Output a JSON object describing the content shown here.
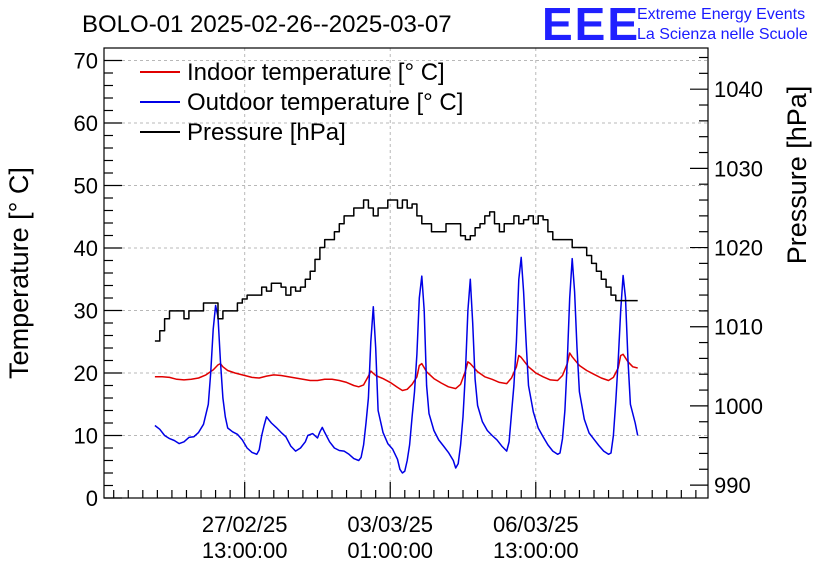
{
  "chart_data": {
    "type": "line",
    "title": "BOLO-01 2025-02-26--2025-03-07",
    "logo": {
      "mark": "EEE",
      "line1": "Extreme Energy Events",
      "line2": "La Scienza nelle Scuole",
      "color": "#2020ff"
    },
    "x_axis": {
      "type": "time",
      "range_hours": [
        -21,
        228
      ],
      "ticks": [
        {
          "hours": 37,
          "date": "27/02/25",
          "time": "13:00:00"
        },
        {
          "hours": 97,
          "date": "03/03/25",
          "time": "01:00:00"
        },
        {
          "hours": 157,
          "date": "06/03/25",
          "time": "13:00:00"
        }
      ]
    },
    "y_left": {
      "label": "Temperature [° C]",
      "ylim": [
        0,
        72
      ],
      "ticks": [
        0,
        10,
        20,
        30,
        40,
        50,
        60,
        70
      ]
    },
    "y_right": {
      "label": "Pressure [hPa]",
      "ylim": [
        988.37,
        1045.2
      ],
      "ticks": [
        990,
        1000,
        1010,
        1020,
        1030,
        1040
      ]
    },
    "grid": true,
    "legend_position": "top-left",
    "series": [
      {
        "name": "Indoor temperature [° C]",
        "color": "#e00000",
        "axis": "left",
        "points": [
          [
            0,
            19.4
          ],
          [
            3,
            19.4
          ],
          [
            6,
            19.3
          ],
          [
            9,
            19.0
          ],
          [
            12,
            18.9
          ],
          [
            15,
            19.0
          ],
          [
            18,
            19.2
          ],
          [
            21,
            19.7
          ],
          [
            24,
            20.5
          ],
          [
            26,
            21.3
          ],
          [
            27,
            21.5
          ],
          [
            28,
            21.0
          ],
          [
            30,
            20.4
          ],
          [
            33,
            20.0
          ],
          [
            36,
            19.7
          ],
          [
            40,
            19.3
          ],
          [
            43,
            19.2
          ],
          [
            46,
            19.5
          ],
          [
            49,
            19.7
          ],
          [
            52,
            19.6
          ],
          [
            55,
            19.4
          ],
          [
            58,
            19.2
          ],
          [
            61,
            19.0
          ],
          [
            64,
            18.8
          ],
          [
            67,
            18.8
          ],
          [
            70,
            19.0
          ],
          [
            73,
            19.0
          ],
          [
            76,
            18.8
          ],
          [
            79,
            18.5
          ],
          [
            82,
            18.0
          ],
          [
            84,
            17.8
          ],
          [
            86,
            18.1
          ],
          [
            88,
            19.5
          ],
          [
            89,
            20.3
          ],
          [
            91,
            19.6
          ],
          [
            94,
            19.1
          ],
          [
            97,
            18.5
          ],
          [
            100,
            17.7
          ],
          [
            102,
            17.2
          ],
          [
            104,
            17.4
          ],
          [
            106,
            18.2
          ],
          [
            108,
            19.4
          ],
          [
            109,
            21.2
          ],
          [
            110,
            21.5
          ],
          [
            112,
            20.2
          ],
          [
            115,
            19.1
          ],
          [
            118,
            18.4
          ],
          [
            121,
            17.8
          ],
          [
            124,
            17.5
          ],
          [
            126,
            18.2
          ],
          [
            128,
            20.3
          ],
          [
            129,
            21.8
          ],
          [
            130,
            21.5
          ],
          [
            133,
            20.2
          ],
          [
            136,
            19.4
          ],
          [
            139,
            19.0
          ],
          [
            142,
            18.5
          ],
          [
            145,
            18.3
          ],
          [
            147,
            19.2
          ],
          [
            149,
            21.0
          ],
          [
            150,
            22.8
          ],
          [
            151,
            22.5
          ],
          [
            154,
            21.0
          ],
          [
            157,
            20.0
          ],
          [
            160,
            19.4
          ],
          [
            163,
            18.9
          ],
          [
            166,
            18.8
          ],
          [
            168,
            19.6
          ],
          [
            170,
            21.5
          ],
          [
            171,
            23.2
          ],
          [
            172,
            22.6
          ],
          [
            175,
            21.2
          ],
          [
            178,
            20.4
          ],
          [
            181,
            19.8
          ],
          [
            184,
            19.2
          ],
          [
            187,
            18.8
          ],
          [
            189,
            19.3
          ],
          [
            191,
            20.8
          ],
          [
            192,
            22.8
          ],
          [
            193,
            23.0
          ],
          [
            195,
            21.8
          ],
          [
            197,
            21.0
          ],
          [
            199,
            20.8
          ]
        ]
      },
      {
        "name": "Outdoor temperature [° C]",
        "color": "#0000e6",
        "axis": "left",
        "points": [
          [
            0,
            11.6
          ],
          [
            2,
            11.0
          ],
          [
            4,
            10.0
          ],
          [
            6,
            9.5
          ],
          [
            8,
            9.2
          ],
          [
            10,
            8.7
          ],
          [
            12,
            9.0
          ],
          [
            14,
            9.7
          ],
          [
            16,
            9.8
          ],
          [
            18,
            10.5
          ],
          [
            20,
            11.8
          ],
          [
            22,
            15.0
          ],
          [
            23,
            20.0
          ],
          [
            24,
            27.0
          ],
          [
            25,
            30.8
          ],
          [
            26,
            29.0
          ],
          [
            27,
            22.0
          ],
          [
            28,
            16.0
          ],
          [
            29,
            13.0
          ],
          [
            30,
            11.2
          ],
          [
            32,
            10.6
          ],
          [
            34,
            10.2
          ],
          [
            36,
            9.3
          ],
          [
            38,
            8.0
          ],
          [
            40,
            7.3
          ],
          [
            42,
            7.0
          ],
          [
            43,
            7.7
          ],
          [
            44,
            10.0
          ],
          [
            45,
            11.6
          ],
          [
            46,
            13.0
          ],
          [
            47,
            12.5
          ],
          [
            48,
            12.0
          ],
          [
            50,
            11.3
          ],
          [
            52,
            10.5
          ],
          [
            54,
            9.8
          ],
          [
            56,
            8.3
          ],
          [
            58,
            7.5
          ],
          [
            60,
            8.0
          ],
          [
            62,
            9.0
          ],
          [
            63,
            10.0
          ],
          [
            65,
            10.3
          ],
          [
            67,
            9.6
          ],
          [
            68,
            10.6
          ],
          [
            69,
            11.3
          ],
          [
            70,
            10.5
          ],
          [
            72,
            9.0
          ],
          [
            74,
            8.0
          ],
          [
            76,
            7.6
          ],
          [
            78,
            7.5
          ],
          [
            80,
            7.0
          ],
          [
            82,
            6.3
          ],
          [
            84,
            6.0
          ],
          [
            85,
            6.5
          ],
          [
            86,
            8.5
          ],
          [
            87,
            12.0
          ],
          [
            88,
            16.0
          ],
          [
            89,
            25.0
          ],
          [
            90,
            30.6
          ],
          [
            91,
            24.0
          ],
          [
            92,
            14.0
          ],
          [
            94,
            10.5
          ],
          [
            96,
            8.7
          ],
          [
            98,
            7.8
          ],
          [
            100,
            6.2
          ],
          [
            101,
            4.6
          ],
          [
            102,
            4.0
          ],
          [
            103,
            4.3
          ],
          [
            104,
            6.0
          ],
          [
            105,
            8.5
          ],
          [
            106,
            13.0
          ],
          [
            107,
            17.0
          ],
          [
            108,
            23.0
          ],
          [
            109,
            32.0
          ],
          [
            110,
            35.5
          ],
          [
            111,
            30.0
          ],
          [
            112,
            18.0
          ],
          [
            113,
            13.5
          ],
          [
            115,
            10.8
          ],
          [
            117,
            9.3
          ],
          [
            119,
            8.3
          ],
          [
            121,
            7.3
          ],
          [
            123,
            6.0
          ],
          [
            124,
            4.8
          ],
          [
            125,
            5.5
          ],
          [
            126,
            8.5
          ],
          [
            127,
            13.0
          ],
          [
            128,
            20.0
          ],
          [
            129,
            30.0
          ],
          [
            130,
            35.0
          ],
          [
            131,
            28.0
          ],
          [
            132,
            19.0
          ],
          [
            133,
            14.8
          ],
          [
            135,
            12.2
          ],
          [
            137,
            10.8
          ],
          [
            139,
            10.0
          ],
          [
            141,
            9.3
          ],
          [
            143,
            8.3
          ],
          [
            145,
            7.5
          ],
          [
            146,
            9.0
          ],
          [
            147,
            13.5
          ],
          [
            148,
            18.0
          ],
          [
            149,
            25.0
          ],
          [
            150,
            35.0
          ],
          [
            151,
            38.5
          ],
          [
            152,
            33.0
          ],
          [
            153,
            25.0
          ],
          [
            154,
            18.0
          ],
          [
            156,
            13.8
          ],
          [
            158,
            11.2
          ],
          [
            160,
            9.8
          ],
          [
            162,
            8.5
          ],
          [
            164,
            7.5
          ],
          [
            166,
            7.0
          ],
          [
            167,
            7.2
          ],
          [
            168,
            9.5
          ],
          [
            169,
            14.0
          ],
          [
            170,
            22.0
          ],
          [
            171,
            32.0
          ],
          [
            172,
            38.3
          ],
          [
            173,
            33.0
          ],
          [
            174,
            24.0
          ],
          [
            175,
            17.0
          ],
          [
            177,
            12.6
          ],
          [
            179,
            10.4
          ],
          [
            181,
            9.4
          ],
          [
            183,
            8.4
          ],
          [
            185,
            7.5
          ],
          [
            187,
            7.0
          ],
          [
            188,
            7.2
          ],
          [
            189,
            10.0
          ],
          [
            190,
            15.5
          ],
          [
            191,
            22.0
          ],
          [
            192,
            30.0
          ],
          [
            193,
            35.6
          ],
          [
            194,
            32.0
          ],
          [
            195,
            22.0
          ],
          [
            196,
            15.0
          ],
          [
            198,
            12.0
          ],
          [
            199,
            10.0
          ]
        ]
      },
      {
        "name": "Pressure [hPa]",
        "color": "#000000",
        "axis": "right",
        "points": [
          [
            0,
            1008.2
          ],
          [
            2,
            1009.5
          ],
          [
            4,
            1011.0
          ],
          [
            6,
            1012.0
          ],
          [
            10,
            1012.0
          ],
          [
            12,
            1011.0
          ],
          [
            14,
            1012.0
          ],
          [
            18,
            1012.0
          ],
          [
            20,
            1013.0
          ],
          [
            24,
            1013.0
          ],
          [
            26,
            1011.0
          ],
          [
            28,
            1012.0
          ],
          [
            32,
            1012.0
          ],
          [
            34,
            1013.0
          ],
          [
            36,
            1013.5
          ],
          [
            38,
            1014.0
          ],
          [
            42,
            1014.0
          ],
          [
            44,
            1015.0
          ],
          [
            46,
            1014.5
          ],
          [
            48,
            1015.5
          ],
          [
            52,
            1015.0
          ],
          [
            54,
            1014.0
          ],
          [
            56,
            1015.0
          ],
          [
            58,
            1014.5
          ],
          [
            60,
            1015.0
          ],
          [
            62,
            1016.0
          ],
          [
            64,
            1017.0
          ],
          [
            66,
            1018.5
          ],
          [
            68,
            1020.0
          ],
          [
            70,
            1021.0
          ],
          [
            72,
            1021.0
          ],
          [
            74,
            1022.0
          ],
          [
            76,
            1023.0
          ],
          [
            78,
            1024.0
          ],
          [
            80,
            1024.0
          ],
          [
            82,
            1025.0
          ],
          [
            84,
            1025.0
          ],
          [
            86,
            1026.0
          ],
          [
            88,
            1025.0
          ],
          [
            90,
            1024.0
          ],
          [
            92,
            1025.0
          ],
          [
            94,
            1025.0
          ],
          [
            96,
            1026.0
          ],
          [
            98,
            1026.0
          ],
          [
            100,
            1025.0
          ],
          [
            102,
            1026.0
          ],
          [
            104,
            1025.0
          ],
          [
            106,
            1025.5
          ],
          [
            108,
            1024.0
          ],
          [
            110,
            1023.0
          ],
          [
            112,
            1023.0
          ],
          [
            114,
            1022.0
          ],
          [
            118,
            1022.0
          ],
          [
            120,
            1023.0
          ],
          [
            124,
            1023.0
          ],
          [
            126,
            1021.5
          ],
          [
            128,
            1021.0
          ],
          [
            130,
            1021.5
          ],
          [
            132,
            1022.5
          ],
          [
            134,
            1023.0
          ],
          [
            136,
            1024.0
          ],
          [
            138,
            1024.5
          ],
          [
            140,
            1023.0
          ],
          [
            142,
            1022.0
          ],
          [
            144,
            1023.0
          ],
          [
            146,
            1023.0
          ],
          [
            148,
            1024.0
          ],
          [
            150,
            1023.0
          ],
          [
            152,
            1023.5
          ],
          [
            154,
            1024.0
          ],
          [
            156,
            1023.0
          ],
          [
            158,
            1024.0
          ],
          [
            160,
            1023.5
          ],
          [
            162,
            1022.0
          ],
          [
            164,
            1021.0
          ],
          [
            168,
            1021.0
          ],
          [
            170,
            1021.0
          ],
          [
            172,
            1020.0
          ],
          [
            176,
            1020.0
          ],
          [
            178,
            1019.0
          ],
          [
            180,
            1018.0
          ],
          [
            182,
            1017.0
          ],
          [
            184,
            1016.0
          ],
          [
            186,
            1015.0
          ],
          [
            188,
            1014.0
          ],
          [
            190,
            1013.3
          ],
          [
            194,
            1013.3
          ],
          [
            196,
            1013.3
          ],
          [
            199,
            1013.3
          ]
        ]
      }
    ]
  }
}
